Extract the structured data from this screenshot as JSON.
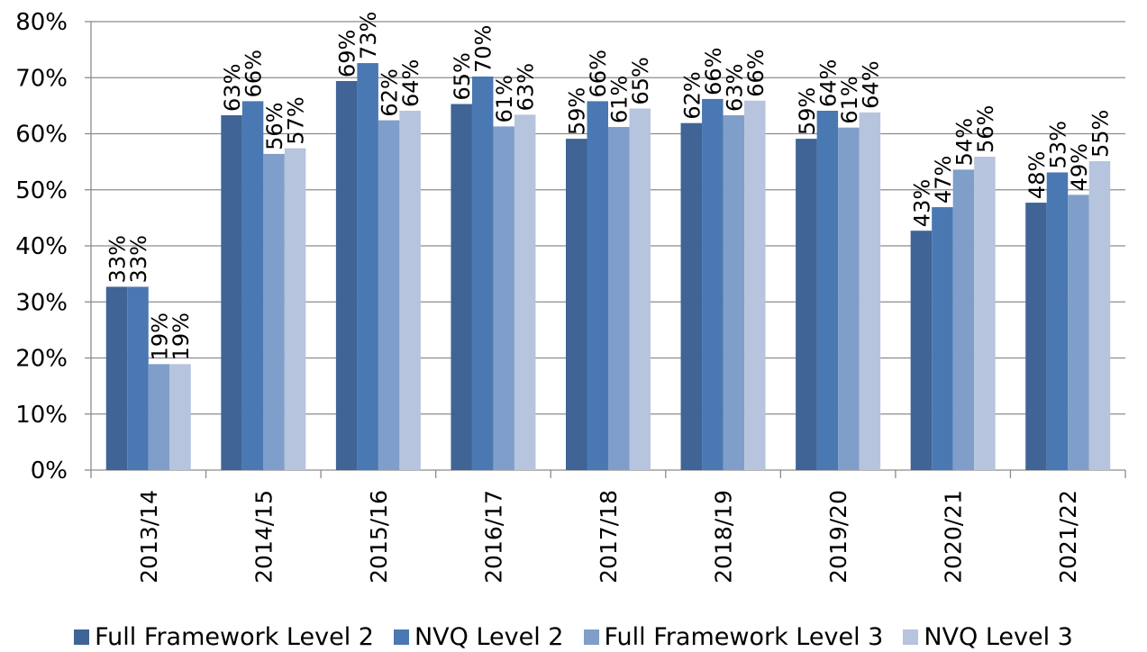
{
  "chart_data": {
    "type": "bar",
    "title": "",
    "xlabel": "",
    "ylabel": "",
    "ylim": [
      0,
      80
    ],
    "y_ticks": [
      "0%",
      "10%",
      "20%",
      "30%",
      "40%",
      "50%",
      "60%",
      "70%",
      "80%"
    ],
    "y_tick_values": [
      0,
      10,
      20,
      30,
      40,
      50,
      60,
      70,
      80
    ],
    "grid": true,
    "legend_position": "bottom",
    "categories": [
      "2013/14",
      "2014/15",
      "2015/16",
      "2016/17",
      "2017/18",
      "2018/19",
      "2019/20",
      "2020/21",
      "2021/22"
    ],
    "series": [
      {
        "name": "Full Framework Level 2",
        "color": "#3f6495",
        "values": [
          32.7,
          63.3,
          69.4,
          65.3,
          59.1,
          61.9,
          59.1,
          42.7,
          47.7
        ],
        "labels": [
          "33%",
          "63%",
          "69%",
          "65%",
          "59%",
          "62%",
          "59%",
          "43%",
          "48%"
        ]
      },
      {
        "name": "NVQ Level 2",
        "color": "#4a78b2",
        "values": [
          32.7,
          65.8,
          72.6,
          70.2,
          65.8,
          66.2,
          64.1,
          46.9,
          53.1
        ],
        "labels": [
          "33%",
          "66%",
          "73%",
          "70%",
          "66%",
          "66%",
          "64%",
          "47%",
          "53%"
        ]
      },
      {
        "name": "Full Framework Level 3",
        "color": "#7f9ec9",
        "values": [
          18.9,
          56.4,
          62.4,
          61.3,
          61.2,
          63.3,
          61.1,
          53.6,
          49.1
        ],
        "labels": [
          "19%",
          "56%",
          "62%",
          "61%",
          "61%",
          "63%",
          "61%",
          "54%",
          "49%"
        ]
      },
      {
        "name": "NVQ Level 3",
        "color": "#b6c4de",
        "values": [
          18.9,
          57.4,
          64.1,
          63.4,
          64.5,
          65.9,
          63.8,
          55.9,
          55.1
        ],
        "labels": [
          "19%",
          "57%",
          "64%",
          "63%",
          "65%",
          "66%",
          "64%",
          "56%",
          "55%"
        ]
      }
    ],
    "colors": {
      "gridline": "#8c8c8c",
      "axis": "#8c8c8c",
      "title_partial": "#2e75b6"
    }
  }
}
